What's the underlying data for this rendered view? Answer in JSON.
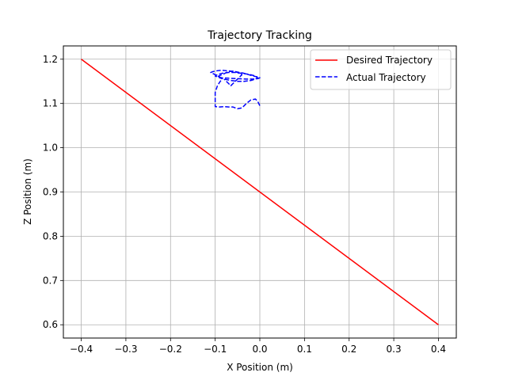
{
  "chart_data": {
    "type": "line",
    "title": "Trajectory Tracking",
    "xlabel": "X Position (m)",
    "ylabel": "Z Position (m)",
    "xlim": [
      -0.44,
      0.44
    ],
    "ylim": [
      0.57,
      1.23
    ],
    "xticks": [
      -0.4,
      -0.3,
      -0.2,
      -0.1,
      0.0,
      0.1,
      0.2,
      0.3,
      0.4
    ],
    "yticks": [
      0.6,
      0.7,
      0.8,
      0.9,
      1.0,
      1.1,
      1.2
    ],
    "xtick_labels": [
      "−0.4",
      "−0.3",
      "−0.2",
      "−0.1",
      "0.0",
      "0.1",
      "0.2",
      "0.3",
      "0.4"
    ],
    "ytick_labels": [
      "0.6",
      "0.7",
      "0.8",
      "0.9",
      "1.0",
      "1.1",
      "1.2"
    ],
    "grid": true,
    "legend_position": "top-right",
    "series": [
      {
        "name": "Desired Trajectory",
        "color": "#ff0000",
        "style": "solid",
        "x": [
          -0.4,
          0.4
        ],
        "y": [
          1.2,
          0.6
        ]
      },
      {
        "name": "Actual Trajectory",
        "color": "#0000ff",
        "style": "dashed",
        "x": [
          0.0,
          -0.005,
          -0.01,
          -0.02,
          -0.03,
          -0.04,
          -0.05,
          -0.06,
          -0.07,
          -0.08,
          -0.09,
          -0.1,
          -0.1,
          -0.1,
          -0.095,
          -0.09,
          -0.085,
          -0.09,
          -0.1,
          -0.11,
          -0.105,
          -0.095,
          -0.085,
          -0.075,
          -0.065,
          -0.055,
          -0.045,
          -0.035,
          -0.025,
          -0.015,
          -0.005,
          0.0,
          -0.005,
          -0.015,
          -0.03,
          -0.05,
          -0.07,
          -0.085,
          -0.095,
          -0.1,
          -0.095,
          -0.085,
          -0.07,
          -0.055,
          -0.04,
          -0.025,
          -0.01,
          -0.005,
          -0.01,
          -0.02,
          -0.035,
          -0.05,
          -0.065,
          -0.08,
          -0.09,
          -0.095,
          -0.09,
          -0.08,
          -0.075,
          -0.07,
          -0.06,
          -0.05,
          -0.04,
          -0.045,
          -0.05,
          -0.055,
          -0.06,
          -0.065,
          -0.07,
          -0.075,
          -0.08
        ],
        "y": [
          1.095,
          1.105,
          1.11,
          1.108,
          1.1,
          1.09,
          1.088,
          1.092,
          1.092,
          1.093,
          1.092,
          1.093,
          1.105,
          1.125,
          1.14,
          1.148,
          1.155,
          1.16,
          1.165,
          1.17,
          1.172,
          1.174,
          1.175,
          1.174,
          1.173,
          1.172,
          1.17,
          1.168,
          1.165,
          1.162,
          1.16,
          1.158,
          1.156,
          1.155,
          1.155,
          1.156,
          1.157,
          1.158,
          1.16,
          1.162,
          1.165,
          1.168,
          1.17,
          1.17,
          1.168,
          1.166,
          1.162,
          1.158,
          1.155,
          1.152,
          1.15,
          1.15,
          1.152,
          1.155,
          1.158,
          1.16,
          1.163,
          1.167,
          1.17,
          1.172,
          1.173,
          1.17,
          1.165,
          1.16,
          1.155,
          1.15,
          1.145,
          1.14,
          1.145,
          1.15,
          1.155
        ]
      }
    ]
  }
}
